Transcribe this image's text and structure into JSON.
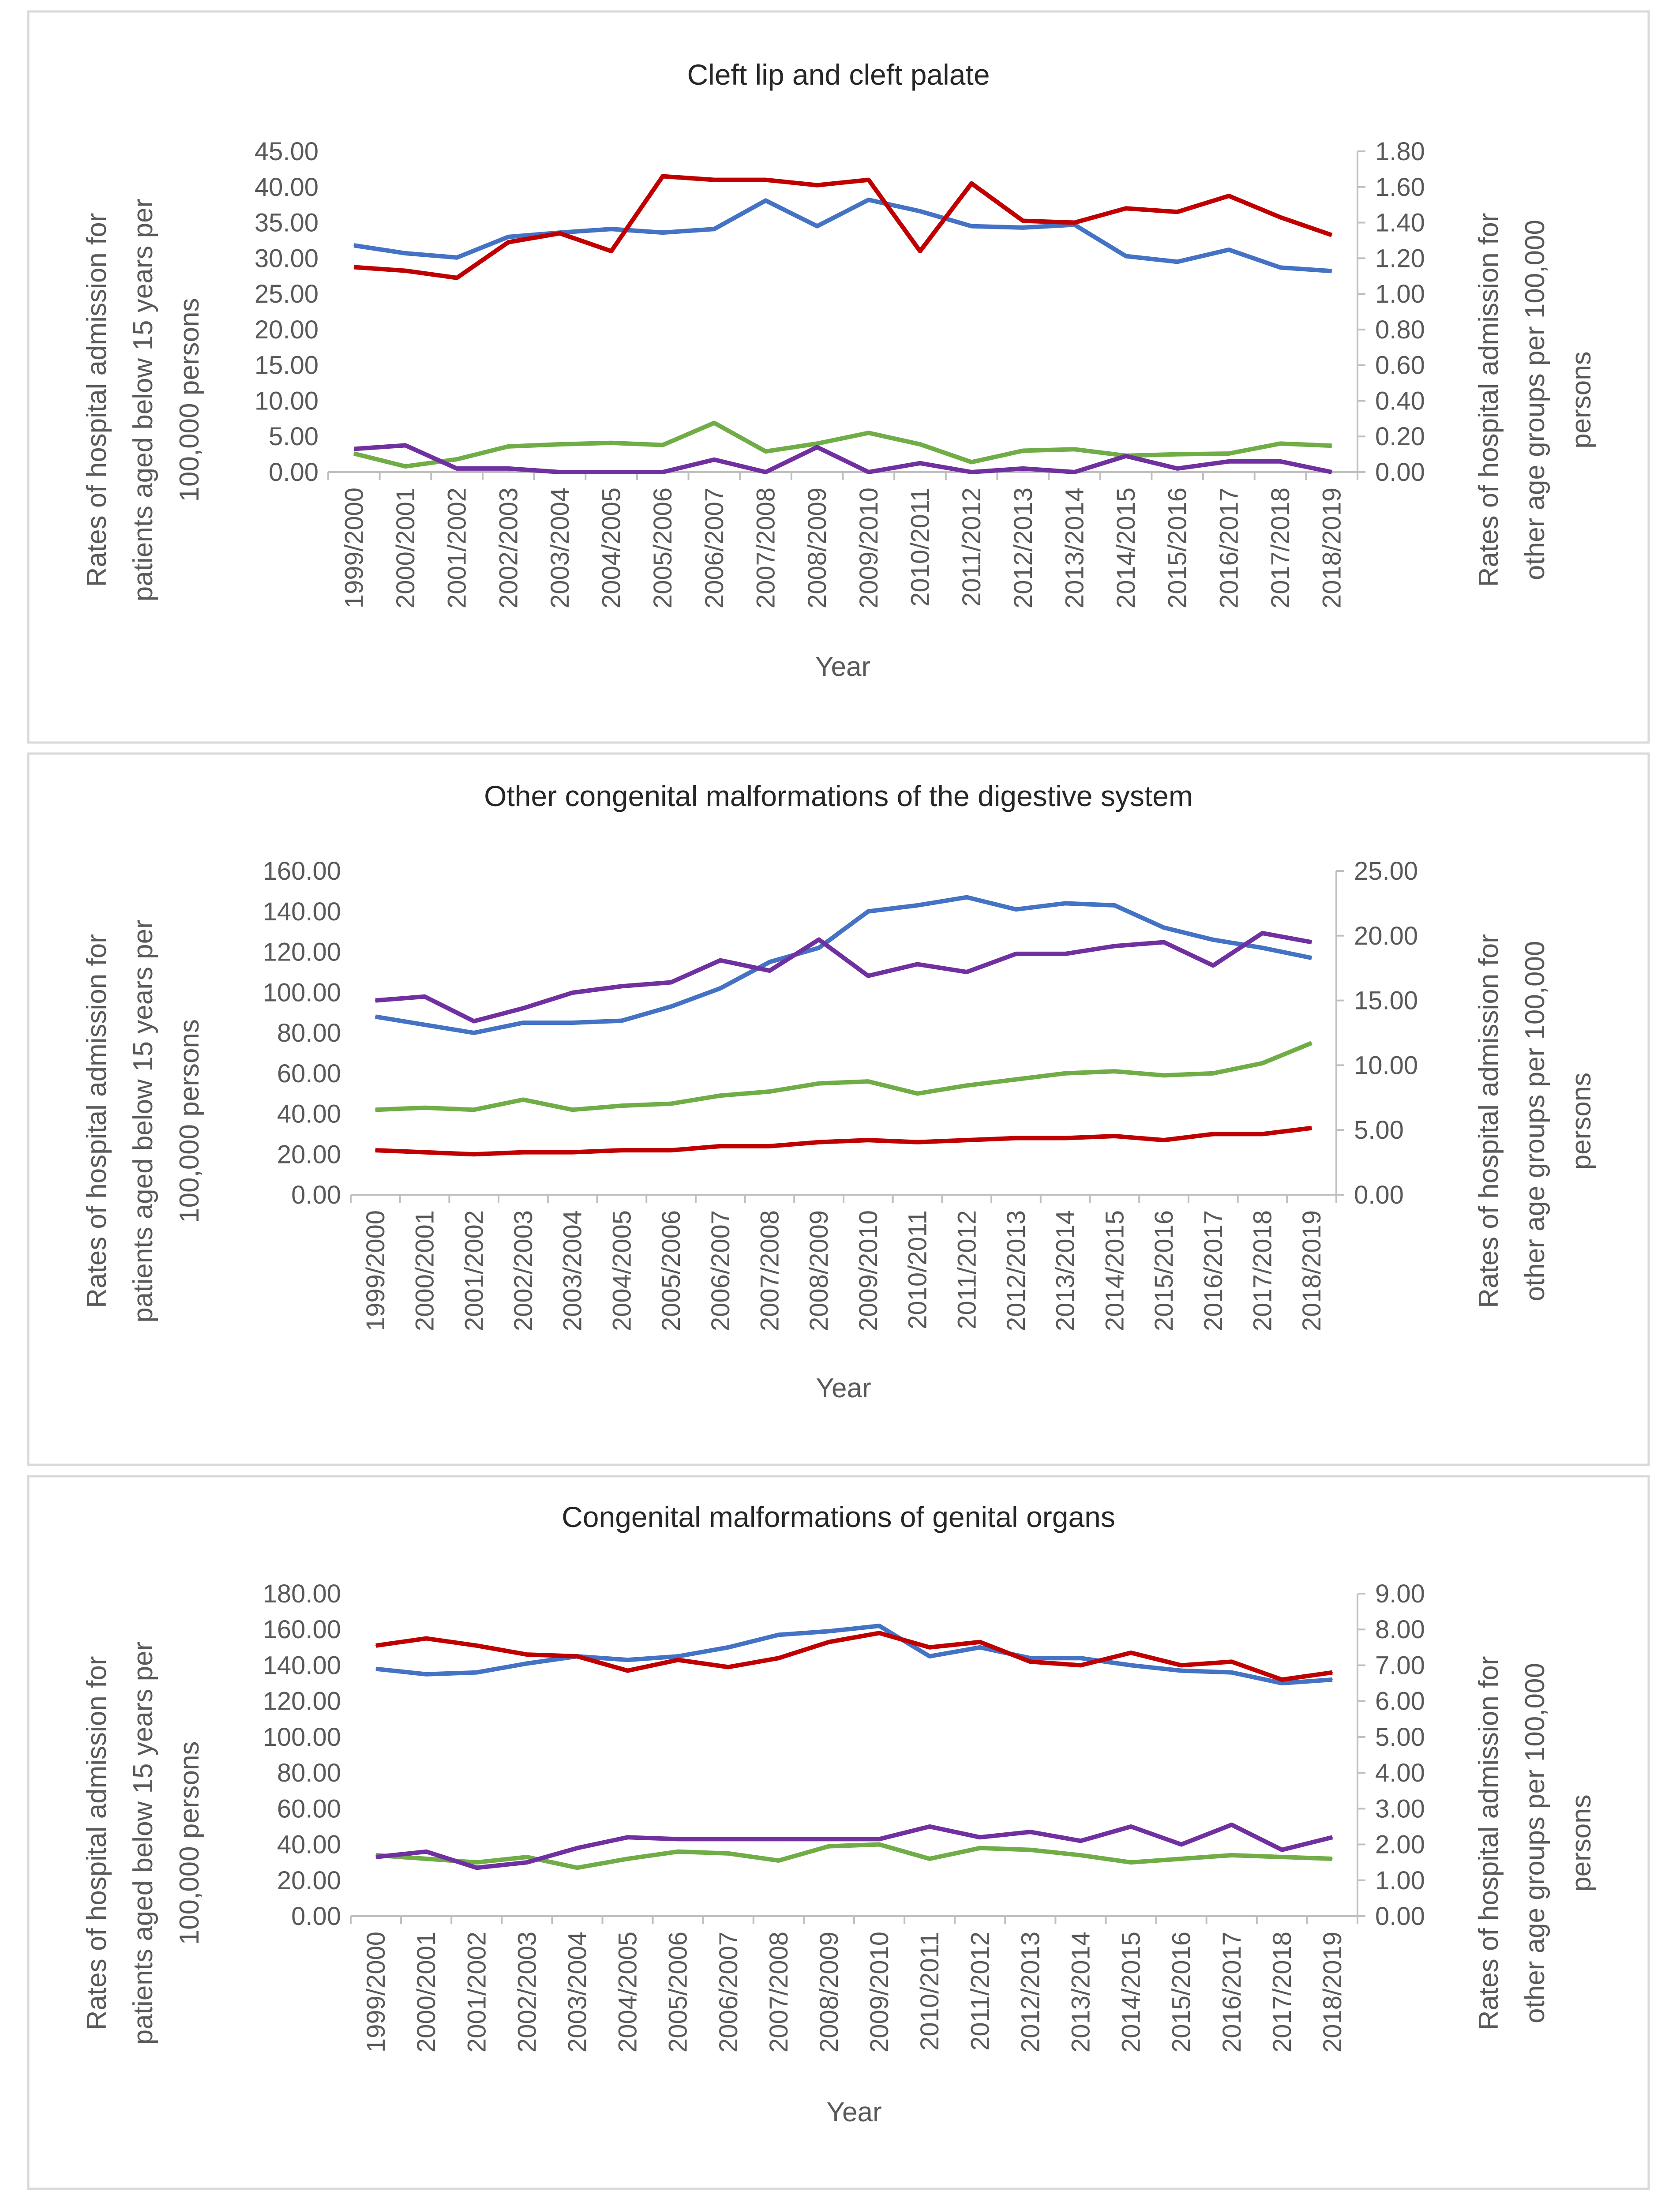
{
  "colors": {
    "blue": "#4472C4",
    "red": "#C00000",
    "green": "#70AD47",
    "purple": "#7030A0",
    "axis": "#BFBFBF",
    "text": "#595959"
  },
  "chart_data": [
    {
      "type": "line",
      "title": "Cleft lip and cleft palate",
      "xlabel": "Year",
      "ylabel": "Rates of hospital admission for patients aged below 15 years per 100,000 persons",
      "y2label": "Rates of hospital admission for other age groups per 100,000 persons",
      "ylim": [
        0,
        45
      ],
      "y2lim": [
        0,
        1.8
      ],
      "left_ticks": [
        "0.00",
        "5.00",
        "10.00",
        "15.00",
        "20.00",
        "25.00",
        "30.00",
        "35.00",
        "40.00",
        "45.00"
      ],
      "right_ticks": [
        "0.00",
        "0.20",
        "0.40",
        "0.60",
        "0.80",
        "1.00",
        "1.20",
        "1.40",
        "1.60",
        "1.80"
      ],
      "grid": false,
      "categories": [
        "1999/2000",
        "2000/2001",
        "2001/2002",
        "2002/2003",
        "2003/2004",
        "2004/2005",
        "2005/2006",
        "2006/2007",
        "2007/2008",
        "2008/2009",
        "2009/2010",
        "2010/2011",
        "2011/2012",
        "2012/2013",
        "2013/2014",
        "2014/2015",
        "2015/2016",
        "2016/2017",
        "2017/2018",
        "2018/2019"
      ],
      "series": [
        {
          "color": "blue",
          "axis": "left",
          "values": [
            31.8,
            30.7,
            30.1,
            33.0,
            33.6,
            34.1,
            33.6,
            34.1,
            38.1,
            34.5,
            38.2,
            36.6,
            34.5,
            34.3,
            34.7,
            30.3,
            29.5,
            31.2,
            28.7,
            28.2
          ]
        },
        {
          "color": "green",
          "axis": "left",
          "values": [
            2.6,
            0.8,
            1.8,
            3.6,
            3.9,
            4.1,
            3.8,
            6.9,
            2.9,
            4.0,
            5.5,
            3.9,
            1.4,
            3.0,
            3.2,
            2.3,
            2.5,
            2.6,
            4.0,
            3.7
          ]
        },
        {
          "color": "red",
          "axis": "right",
          "values": [
            1.15,
            1.13,
            1.09,
            1.29,
            1.34,
            1.24,
            1.66,
            1.64,
            1.64,
            1.61,
            1.64,
            1.24,
            1.62,
            1.41,
            1.4,
            1.48,
            1.46,
            1.55,
            1.43,
            1.33
          ]
        },
        {
          "color": "purple",
          "axis": "right",
          "values": [
            0.13,
            0.15,
            0.02,
            0.02,
            0,
            0,
            0,
            0.07,
            0,
            0.14,
            0,
            0.05,
            0,
            0.02,
            0,
            0.09,
            0.02,
            0.06,
            0.06,
            0
          ]
        }
      ]
    },
    {
      "type": "line",
      "title": "Other congenital malformations of the digestive system",
      "xlabel": "Year",
      "ylabel": "Rates of hospital admission for patients aged below 15 years per 100,000 persons",
      "y2label": "Rates of hospital admission for other age groups per 100,000 persons",
      "ylim": [
        0,
        160
      ],
      "y2lim": [
        0,
        25
      ],
      "left_ticks": [
        "0.00",
        "20.00",
        "40.00",
        "60.00",
        "80.00",
        "100.00",
        "120.00",
        "140.00",
        "160.00"
      ],
      "right_ticks": [
        "0.00",
        "5.00",
        "10.00",
        "15.00",
        "20.00",
        "25.00"
      ],
      "grid": false,
      "categories": [
        "1999/2000",
        "2000/2001",
        "2001/2002",
        "2002/2003",
        "2003/2004",
        "2004/2005",
        "2005/2006",
        "2006/2007",
        "2007/2008",
        "2008/2009",
        "2009/2010",
        "2010/2011",
        "2011/2012",
        "2012/2013",
        "2013/2014",
        "2014/2015",
        "2015/2016",
        "2016/2017",
        "2017/2018",
        "2018/2019"
      ],
      "series": [
        {
          "color": "blue",
          "axis": "left",
          "values": [
            88,
            84,
            80,
            85,
            85,
            86,
            93,
            102,
            115,
            122,
            140,
            143,
            147,
            141,
            144,
            143,
            132,
            126,
            122,
            117
          ]
        },
        {
          "color": "green",
          "axis": "left",
          "values": [
            42,
            43,
            42,
            47,
            42,
            44,
            45,
            49,
            51,
            55,
            56,
            50,
            54,
            57,
            60,
            61,
            59,
            60,
            65,
            75
          ]
        },
        {
          "color": "red",
          "axis": "left",
          "values": [
            22,
            21,
            20,
            21,
            21,
            22,
            22,
            24,
            24,
            26,
            27,
            26,
            27,
            28,
            28,
            29,
            27,
            30,
            30,
            33
          ]
        },
        {
          "color": "purple",
          "axis": "right",
          "values": [
            15.0,
            15.3,
            13.4,
            14.4,
            15.6,
            16.1,
            16.4,
            18.1,
            17.3,
            19.7,
            16.9,
            17.8,
            17.2,
            18.6,
            18.6,
            19.2,
            19.5,
            17.7,
            20.2,
            19.5
          ]
        }
      ]
    },
    {
      "type": "line",
      "title": "Congenital malformations of genital organs",
      "xlabel": "Year",
      "ylabel": "Rates of hospital admission for patients aged below 15 years per 100,000 persons",
      "y2label": "Rates of hospital admission for other age groups per 100,000 persons",
      "ylim": [
        0,
        180
      ],
      "y2lim": [
        0,
        9
      ],
      "left_ticks": [
        "0.00",
        "20.00",
        "40.00",
        "60.00",
        "80.00",
        "100.00",
        "120.00",
        "140.00",
        "160.00",
        "180.00"
      ],
      "right_ticks": [
        "0.00",
        "1.00",
        "2.00",
        "3.00",
        "4.00",
        "5.00",
        "6.00",
        "7.00",
        "8.00",
        "9.00"
      ],
      "grid": false,
      "categories": [
        "1999/2000",
        "2000/2001",
        "2001/2002",
        "2002/2003",
        "2003/2004",
        "2004/2005",
        "2005/2006",
        "2006/2007",
        "2007/2008",
        "2008/2009",
        "2009/2010",
        "2010/2011",
        "2011/2012",
        "2012/2013",
        "2013/2014",
        "2014/2015",
        "2015/2016",
        "2016/2017",
        "2017/2018",
        "2018/2019"
      ],
      "series": [
        {
          "color": "blue",
          "axis": "left",
          "values": [
            138,
            135,
            136,
            141,
            145,
            143,
            145,
            150,
            157,
            159,
            162,
            145,
            150,
            144,
            144,
            140,
            137,
            136,
            130,
            132
          ]
        },
        {
          "color": "green",
          "axis": "left",
          "values": [
            34,
            32,
            30,
            33,
            27,
            32,
            36,
            35,
            31,
            39,
            40,
            32,
            38,
            37,
            34,
            30,
            32,
            34,
            33,
            32
          ]
        },
        {
          "color": "red",
          "axis": "right",
          "values": [
            7.55,
            7.75,
            7.55,
            7.3,
            7.25,
            6.85,
            7.15,
            6.95,
            7.2,
            7.65,
            7.9,
            7.5,
            7.65,
            7.1,
            7.0,
            7.35,
            7.0,
            7.1,
            6.6,
            6.8
          ]
        },
        {
          "color": "purple",
          "axis": "right",
          "values": [
            1.65,
            1.8,
            1.35,
            1.5,
            1.9,
            2.2,
            2.15,
            2.15,
            2.15,
            2.15,
            2.15,
            2.5,
            2.2,
            2.35,
            2.1,
            2.5,
            2.0,
            2.55,
            1.85,
            2.2
          ]
        }
      ]
    }
  ]
}
